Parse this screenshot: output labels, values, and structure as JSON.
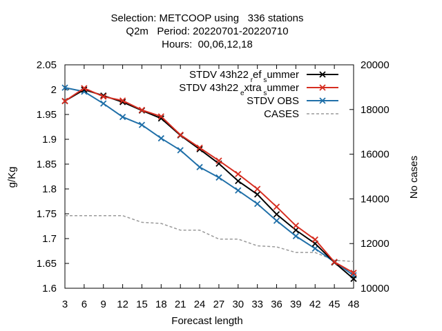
{
  "chart_data": {
    "type": "line",
    "title_lines": [
      "Selection: METCOOP using   336 stations",
      "Q2m   Period: 20220701-20220710",
      "Hours:  00,06,12,18"
    ],
    "xlabel": "Forecast length",
    "ylabel": "g/Kg",
    "y2label": "No cases",
    "x": [
      3,
      6,
      9,
      12,
      15,
      18,
      21,
      24,
      27,
      30,
      33,
      36,
      39,
      42,
      45,
      48
    ],
    "xlim": [
      3,
      48
    ],
    "ylim": [
      1.6,
      2.05
    ],
    "y2lim": [
      10000,
      20000
    ],
    "yticks": [
      "1.6",
      "1.65",
      "1.7",
      "1.75",
      "1.8",
      "1.85",
      "1.9",
      "1.95",
      "2",
      "2.05"
    ],
    "y2ticks": [
      "10000",
      "12000",
      "14000",
      "16000",
      "18000",
      "20000"
    ],
    "grid": false,
    "legend_position": "top-right",
    "series": [
      {
        "legend": {
          "pre": "STDV 43h22",
          "s1": "r",
          "mid1": "ef",
          "s2": "s",
          "post": "ummer"
        },
        "color": "#000000",
        "axis": "left",
        "marker": "x",
        "values": [
          1.977,
          2.0,
          1.988,
          1.975,
          1.958,
          1.942,
          1.908,
          1.88,
          1.851,
          1.816,
          1.789,
          1.749,
          1.717,
          1.69,
          1.652,
          1.619
        ]
      },
      {
        "legend": {
          "pre": "STDV 43h22",
          "s1": "e",
          "mid1": "xtra",
          "s2": "s",
          "post": "ummer"
        },
        "color": "#d62d20",
        "axis": "left",
        "marker": "x",
        "values": [
          1.977,
          2.003,
          1.986,
          1.978,
          1.959,
          1.946,
          1.909,
          1.883,
          1.857,
          1.83,
          1.8,
          1.764,
          1.726,
          1.698,
          1.653,
          1.631
        ]
      },
      {
        "legend": {
          "pre": "STDV OBS"
        },
        "color": "#1f6fa8",
        "axis": "left",
        "marker": "x",
        "values": [
          2.004,
          1.996,
          1.972,
          1.945,
          1.929,
          1.902,
          1.878,
          1.844,
          1.823,
          1.797,
          1.77,
          1.736,
          1.705,
          1.68,
          1.653,
          1.626
        ]
      },
      {
        "legend": {
          "pre": "CASES"
        },
        "color": "#999999",
        "axis": "right",
        "dashed": true,
        "values": [
          13250,
          13250,
          13250,
          13250,
          12950,
          12900,
          12600,
          12600,
          12200,
          12200,
          11900,
          11850,
          11600,
          11600,
          11250,
          11200
        ]
      }
    ]
  }
}
